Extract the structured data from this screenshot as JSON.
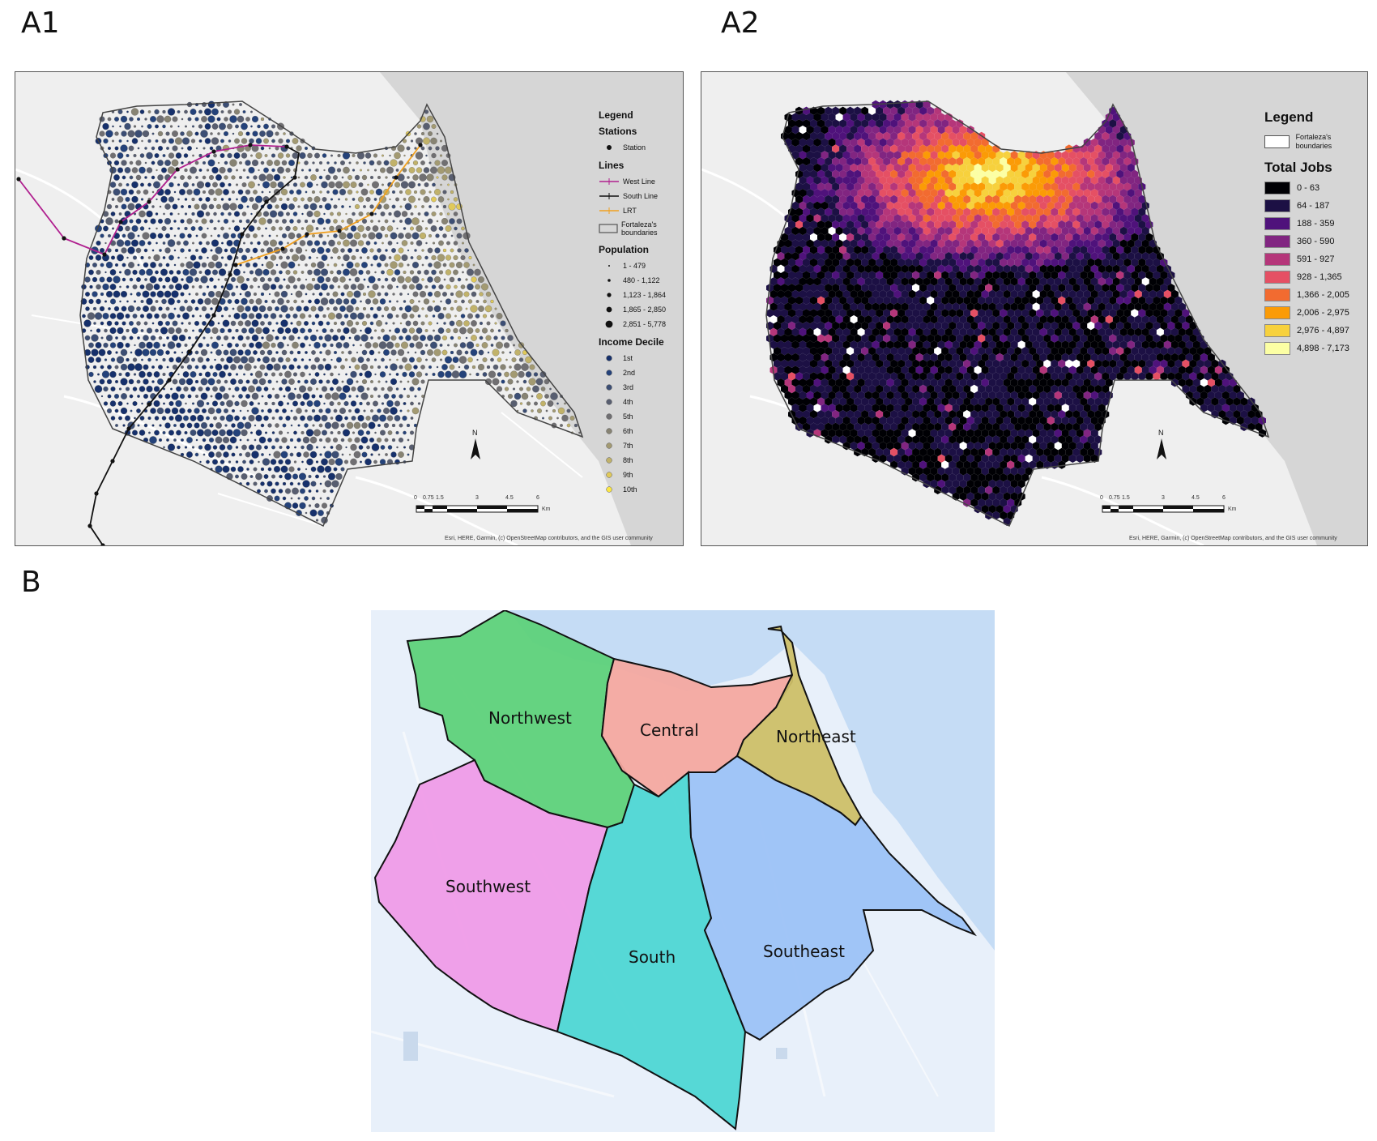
{
  "panels": {
    "a1": "A1",
    "a2": "A2",
    "b": "B"
  },
  "a1": {
    "legend_title": "Legend",
    "stations_title": "Stations",
    "station_label": "Station",
    "lines_title": "Lines",
    "lines": [
      {
        "label": "West Line",
        "color": "#b0208f"
      },
      {
        "label": "South Line",
        "color": "#111111"
      },
      {
        "label": "LRT",
        "color": "#f0a020"
      }
    ],
    "boundary_label": "Fortaleza's boundaries",
    "population_title": "Population",
    "population": [
      "1 - 479",
      "480 - 1,122",
      "1,123 - 1,864",
      "1,865 - 2,850",
      "2,851 - 5,778"
    ],
    "income_title": "Income Decile",
    "income": [
      {
        "label": "1st",
        "color": "#16306b"
      },
      {
        "label": "2nd",
        "color": "#24427a"
      },
      {
        "label": "3rd",
        "color": "#3c4e74"
      },
      {
        "label": "4th",
        "color": "#585e70"
      },
      {
        "label": "5th",
        "color": "#706f72"
      },
      {
        "label": "6th",
        "color": "#878373"
      },
      {
        "label": "7th",
        "color": "#a39a72"
      },
      {
        "label": "8th",
        "color": "#c1b26a"
      },
      {
        "label": "9th",
        "color": "#e0c95a"
      },
      {
        "label": "10th",
        "color": "#fbe645"
      }
    ],
    "scale_ticks": [
      "0",
      "0.75",
      "1.5",
      "3",
      "4.5",
      "6"
    ],
    "scale_unit": "Km",
    "north": "N",
    "attribution": "Esri, HERE, Garmin, (c) OpenStreetMap contributors, and the GIS user community"
  },
  "a2": {
    "legend_title": "Legend",
    "boundary_label": "Fortaleza's boundaries",
    "jobs_title": "Total Jobs",
    "jobs": [
      {
        "label": "0 - 63",
        "color": "#000004"
      },
      {
        "label": "64 - 187",
        "color": "#1c1044"
      },
      {
        "label": "188 - 359",
        "color": "#4f127b"
      },
      {
        "label": "360 - 590",
        "color": "#812581"
      },
      {
        "label": "591 - 927",
        "color": "#b5367a"
      },
      {
        "label": "928 - 1,365",
        "color": "#e55064"
      },
      {
        "label": "1,366 - 2,005",
        "color": "#f26b30"
      },
      {
        "label": "2,006 - 2,975",
        "color": "#fb9b06"
      },
      {
        "label": "2,976 - 4,897",
        "color": "#f7d13d"
      },
      {
        "label": "4,898 - 7,173",
        "color": "#fcffa4"
      }
    ],
    "scale_ticks": [
      "0",
      "0.75",
      "1.5",
      "3",
      "4.5",
      "6"
    ],
    "scale_unit": "Km",
    "north": "N",
    "attribution": "Esri, HERE, Garmin, (c) OpenStreetMap contributors, and the GIS user community"
  },
  "b": {
    "regions": [
      {
        "name": "Northwest",
        "color": "#5ed17a"
      },
      {
        "name": "Central",
        "color": "#f4a8a0"
      },
      {
        "name": "Northeast",
        "color": "#cdbf68"
      },
      {
        "name": "Southwest",
        "color": "#ef9be8"
      },
      {
        "name": "South",
        "color": "#4ed6d4"
      },
      {
        "name": "Southeast",
        "color": "#9cc2f7"
      }
    ],
    "sea_color": "#c5dcf5",
    "land_color": "#e8f0fa"
  }
}
